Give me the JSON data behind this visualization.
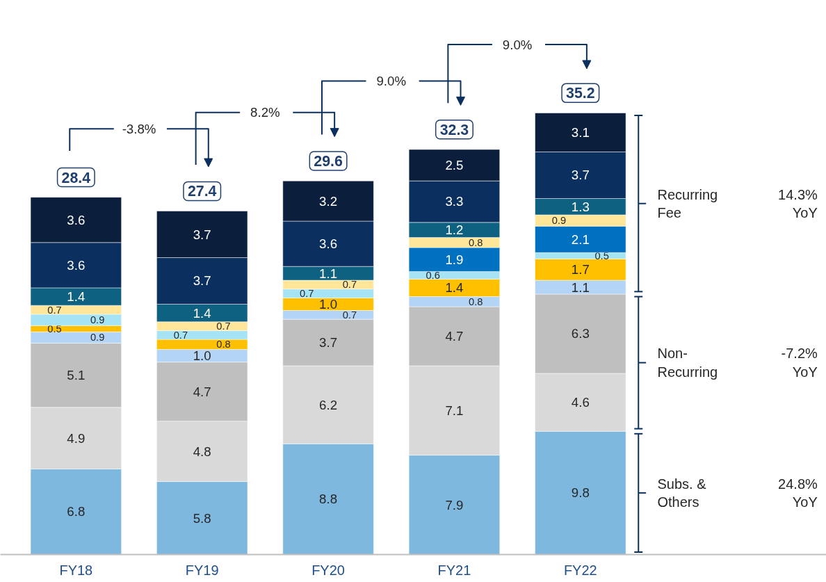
{
  "chart_data": {
    "type": "bar",
    "stacked": true,
    "data_labels": true,
    "categories": [
      "FY18",
      "FY19",
      "FY20",
      "FY21",
      "FY22"
    ],
    "series": [
      {
        "color": "#7fb8de",
        "values": [
          6.8,
          5.8,
          8.8,
          7.9,
          9.8
        ]
      },
      {
        "color": "#d9d9d9",
        "values": [
          4.9,
          4.8,
          6.2,
          7.1,
          4.6
        ]
      },
      {
        "color": "#bfbfbf",
        "values": [
          5.1,
          4.7,
          3.7,
          4.7,
          6.3
        ]
      },
      {
        "color": "#b4d4f5",
        "values": [
          0.9,
          1.0,
          0.7,
          0.8,
          1.1
        ],
        "value_labels": [
          "0.9",
          "1.0",
          "0.7",
          "0.8",
          "1.1"
        ]
      },
      {
        "color": "#ffc000",
        "values": [
          0.5,
          0.8,
          1.0,
          1.4,
          1.7
        ],
        "value_labels": [
          "0.5",
          "0.8",
          "1.0",
          "1.4",
          "1.7"
        ]
      },
      {
        "color": "#a6e4f5",
        "values": [
          0.9,
          0.7,
          0.7,
          0.6,
          0.5
        ]
      },
      {
        "color": "#0070c0",
        "values": [
          null,
          null,
          null,
          1.9,
          2.1
        ]
      },
      {
        "color": "#ffe699",
        "values": [
          0.7,
          0.7,
          0.7,
          0.8,
          0.9
        ]
      },
      {
        "color": "#0e6180",
        "values": [
          1.4,
          1.4,
          1.1,
          1.2,
          1.3
        ]
      },
      {
        "color": "#0b2f5e",
        "values": [
          3.6,
          3.7,
          3.6,
          3.3,
          3.7
        ]
      },
      {
        "color": "#0b1f3d",
        "values": [
          3.6,
          3.7,
          3.2,
          2.5,
          3.1
        ]
      }
    ],
    "totals": [
      "28.4",
      "27.4",
      "29.6",
      "32.3",
      "35.2"
    ],
    "annotations": [
      "-3.8%",
      "8.2%",
      "9.0%",
      "9.0%",
      "Recurring\nFee",
      "14.3%\nYoY",
      "Non-\nRecurring",
      "-7.2%\nYoY",
      "Subs. &\nOthers",
      "24.8%\nYoY"
    ]
  }
}
